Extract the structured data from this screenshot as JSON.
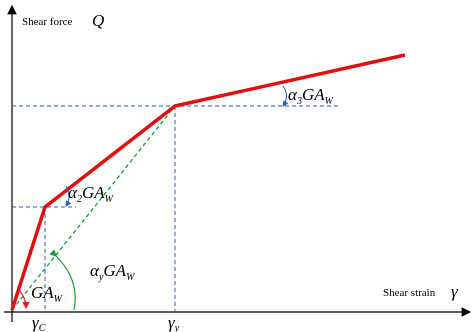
{
  "axes": {
    "y_label": "Shear force",
    "y_symbol": "Q",
    "x_label": "Shear strain",
    "x_symbol": "γ"
  },
  "annotations": [
    {
      "greek": "α",
      "sub": "3",
      "main": "GA",
      "main_sub": "W"
    },
    {
      "greek": "α",
      "sub": "2",
      "main": "GA",
      "main_sub": "W"
    },
    {
      "greek": "α",
      "sub": "y",
      "main": "GA",
      "main_sub": "W"
    },
    {
      "main": "GA",
      "main_sub": "W"
    }
  ],
  "x_marks": [
    {
      "main": "γ",
      "sub": "C"
    },
    {
      "main": "γ",
      "sub": "y"
    }
  ]
}
